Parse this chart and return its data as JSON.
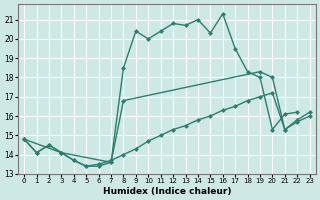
{
  "background_color": "#cde8e5",
  "grid_color": "#ffffff",
  "line_color": "#2e7d6e",
  "xlabel": "Humidex (Indice chaleur)",
  "xlim": [
    -0.5,
    23.5
  ],
  "ylim": [
    13,
    21.8
  ],
  "yticks": [
    13,
    14,
    15,
    16,
    17,
    18,
    19,
    20,
    21
  ],
  "xticks": [
    0,
    1,
    2,
    3,
    4,
    5,
    6,
    7,
    8,
    9,
    10,
    11,
    12,
    13,
    14,
    15,
    16,
    17,
    18,
    19,
    20,
    21,
    22,
    23
  ],
  "line_upper_x": [
    0,
    1,
    2,
    3,
    4,
    5,
    6,
    7,
    8,
    9,
    10,
    11,
    12,
    13,
    14,
    15,
    16,
    17,
    18,
    19,
    20,
    21,
    22
  ],
  "line_upper_y": [
    14.8,
    14.1,
    14.5,
    14.1,
    13.7,
    13.4,
    13.4,
    13.6,
    18.5,
    20.4,
    20.0,
    20.4,
    20.8,
    20.7,
    21.0,
    20.3,
    21.3,
    19.5,
    18.3,
    18.0,
    15.3,
    16.1,
    16.2
  ],
  "line_mid_x": [
    0,
    3,
    7,
    8,
    19,
    20,
    21,
    22,
    23
  ],
  "line_mid_y": [
    14.8,
    14.1,
    13.6,
    16.8,
    18.3,
    18.0,
    15.3,
    15.8,
    16.2
  ],
  "line_lower_x": [
    0,
    1,
    2,
    3,
    4,
    5,
    6,
    7,
    8,
    9,
    10,
    11,
    12,
    13,
    14,
    15,
    16,
    17,
    18,
    19,
    20,
    21,
    22,
    23
  ],
  "line_lower_y": [
    14.8,
    14.1,
    14.5,
    14.1,
    13.7,
    13.4,
    13.5,
    13.7,
    14.0,
    14.3,
    14.7,
    15.0,
    15.3,
    15.5,
    15.8,
    16.0,
    16.3,
    16.5,
    16.8,
    17.0,
    17.2,
    15.3,
    15.7,
    16.0
  ]
}
